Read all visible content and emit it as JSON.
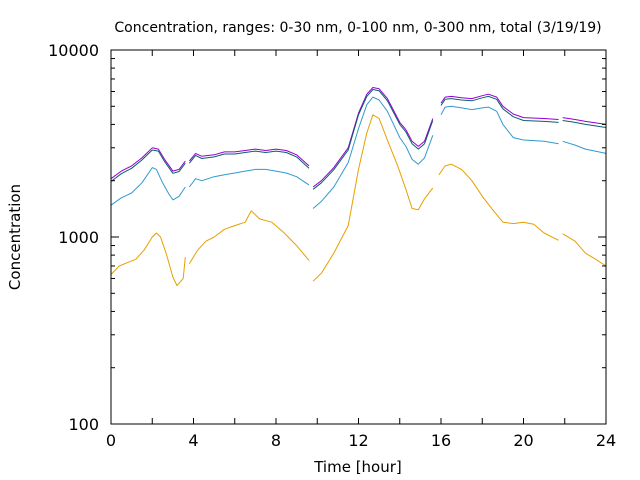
{
  "chart_data": {
    "type": "line",
    "title": "Concentration, ranges: 0-30 nm, 0-100 nm, 0-300 nm, total (3/19/19)",
    "xlabel": "Time [hour]",
    "ylabel": "Concentration",
    "xlim": [
      0,
      24
    ],
    "ylim": [
      100,
      10000
    ],
    "yscale": "log",
    "xticks": [
      "0",
      "4",
      "8",
      "12",
      "16",
      "20",
      "24"
    ],
    "yticks": [
      "100",
      "1000",
      "10000"
    ],
    "grid": false,
    "legend": "none",
    "series": [
      {
        "color": "#9400d3",
        "segments": [
          [
            [
              0,
              2050
            ],
            [
              0.5,
              2250
            ],
            [
              1.0,
              2400
            ],
            [
              1.5,
              2650
            ],
            [
              2.0,
              3000
            ],
            [
              2.3,
              2950
            ],
            [
              2.6,
              2600
            ],
            [
              3.0,
              2250
            ],
            [
              3.3,
              2300
            ],
            [
              3.6,
              2550
            ]
          ],
          [
            [
              3.8,
              2550
            ],
            [
              4.1,
              2800
            ],
            [
              4.4,
              2700
            ],
            [
              5.0,
              2750
            ],
            [
              5.5,
              2850
            ],
            [
              6.0,
              2850
            ],
            [
              6.5,
              2900
            ],
            [
              7.0,
              2950
            ],
            [
              7.5,
              2900
            ],
            [
              8.0,
              2950
            ],
            [
              8.5,
              2900
            ],
            [
              9.0,
              2750
            ],
            [
              9.6,
              2400
            ]
          ],
          [
            [
              9.8,
              1850
            ],
            [
              10.2,
              2000
            ],
            [
              10.8,
              2350
            ],
            [
              11.5,
              3000
            ],
            [
              12.0,
              4600
            ],
            [
              12.4,
              5800
            ],
            [
              12.7,
              6300
            ],
            [
              13.0,
              6200
            ],
            [
              13.4,
              5500
            ],
            [
              14.0,
              4100
            ],
            [
              14.3,
              3750
            ],
            [
              14.6,
              3250
            ],
            [
              14.9,
              3050
            ],
            [
              15.2,
              3250
            ],
            [
              15.6,
              4300
            ]
          ],
          [
            [
              16.0,
              5200
            ],
            [
              16.2,
              5600
            ],
            [
              16.5,
              5650
            ],
            [
              17.0,
              5550
            ],
            [
              17.5,
              5500
            ],
            [
              18.0,
              5700
            ],
            [
              18.3,
              5800
            ],
            [
              18.7,
              5600
            ],
            [
              19.0,
              5000
            ],
            [
              19.5,
              4550
            ],
            [
              20.0,
              4350
            ],
            [
              21.0,
              4300
            ],
            [
              21.7,
              4250
            ]
          ],
          [
            [
              21.9,
              4350
            ],
            [
              22.5,
              4250
            ],
            [
              23.0,
              4150
            ],
            [
              24.0,
              4000
            ]
          ]
        ]
      },
      {
        "color": "#0a5f6a",
        "segments": [
          [
            [
              0,
              1980
            ],
            [
              0.5,
              2180
            ],
            [
              1.0,
              2330
            ],
            [
              1.5,
              2580
            ],
            [
              2.0,
              2920
            ],
            [
              2.3,
              2880
            ],
            [
              2.6,
              2530
            ],
            [
              3.0,
              2190
            ],
            [
              3.3,
              2240
            ],
            [
              3.6,
              2480
            ]
          ],
          [
            [
              3.8,
              2480
            ],
            [
              4.1,
              2730
            ],
            [
              4.4,
              2630
            ],
            [
              5.0,
              2680
            ],
            [
              5.5,
              2780
            ],
            [
              6.0,
              2780
            ],
            [
              6.5,
              2830
            ],
            [
              7.0,
              2880
            ],
            [
              7.5,
              2830
            ],
            [
              8.0,
              2880
            ],
            [
              8.5,
              2830
            ],
            [
              9.0,
              2680
            ],
            [
              9.6,
              2330
            ]
          ],
          [
            [
              9.8,
              1800
            ],
            [
              10.2,
              1950
            ],
            [
              10.8,
              2290
            ],
            [
              11.5,
              2920
            ],
            [
              12.0,
              4500
            ],
            [
              12.4,
              5650
            ],
            [
              12.7,
              6150
            ],
            [
              13.0,
              6050
            ],
            [
              13.4,
              5350
            ],
            [
              14.0,
              4000
            ],
            [
              14.3,
              3650
            ],
            [
              14.6,
              3150
            ],
            [
              14.9,
              2950
            ],
            [
              15.2,
              3150
            ],
            [
              15.6,
              4200
            ]
          ],
          [
            [
              16.0,
              5050
            ],
            [
              16.2,
              5450
            ],
            [
              16.5,
              5500
            ],
            [
              17.0,
              5400
            ],
            [
              17.5,
              5350
            ],
            [
              18.0,
              5550
            ],
            [
              18.3,
              5650
            ],
            [
              18.7,
              5450
            ],
            [
              19.0,
              4850
            ],
            [
              19.5,
              4400
            ],
            [
              20.0,
              4200
            ],
            [
              21.0,
              4150
            ],
            [
              21.7,
              4100
            ]
          ],
          [
            [
              21.9,
              4200
            ],
            [
              22.5,
              4100
            ],
            [
              23.0,
              4000
            ],
            [
              24.0,
              3850
            ]
          ]
        ]
      },
      {
        "color": "#3399cc",
        "segments": [
          [
            [
              0,
              1480
            ],
            [
              0.5,
              1620
            ],
            [
              1.0,
              1720
            ],
            [
              1.5,
              1950
            ],
            [
              2.0,
              2350
            ],
            [
              2.2,
              2300
            ],
            [
              2.5,
              1950
            ],
            [
              2.8,
              1700
            ],
            [
              3.0,
              1580
            ],
            [
              3.3,
              1650
            ],
            [
              3.6,
              1850
            ]
          ],
          [
            [
              3.8,
              1850
            ],
            [
              4.1,
              2050
            ],
            [
              4.4,
              2000
            ],
            [
              5.0,
              2100
            ],
            [
              5.5,
              2150
            ],
            [
              6.0,
              2200
            ],
            [
              6.5,
              2250
            ],
            [
              7.0,
              2300
            ],
            [
              7.5,
              2300
            ],
            [
              8.0,
              2250
            ],
            [
              8.5,
              2200
            ],
            [
              9.0,
              2100
            ],
            [
              9.6,
              1900
            ]
          ],
          [
            [
              9.8,
              1420
            ],
            [
              10.2,
              1550
            ],
            [
              10.8,
              1850
            ],
            [
              11.5,
              2500
            ],
            [
              12.0,
              3800
            ],
            [
              12.4,
              5100
            ],
            [
              12.7,
              5600
            ],
            [
              13.0,
              5400
            ],
            [
              13.4,
              4700
            ],
            [
              14.0,
              3400
            ],
            [
              14.3,
              3050
            ],
            [
              14.6,
              2600
            ],
            [
              14.9,
              2450
            ],
            [
              15.2,
              2650
            ],
            [
              15.6,
              3500
            ]
          ],
          [
            [
              16.0,
              4500
            ],
            [
              16.2,
              4950
            ],
            [
              16.5,
              5000
            ],
            [
              17.0,
              4900
            ],
            [
              17.5,
              4800
            ],
            [
              18.0,
              4900
            ],
            [
              18.3,
              4950
            ],
            [
              18.7,
              4700
            ],
            [
              19.0,
              4000
            ],
            [
              19.5,
              3400
            ],
            [
              20.0,
              3300
            ],
            [
              21.0,
              3250
            ],
            [
              21.7,
              3150
            ]
          ],
          [
            [
              21.9,
              3250
            ],
            [
              22.5,
              3100
            ],
            [
              23.0,
              2950
            ],
            [
              24.0,
              2800
            ]
          ]
        ]
      },
      {
        "color": "#e6a000",
        "segments": [
          [
            [
              0,
              630
            ],
            [
              0.4,
              700
            ],
            [
              0.8,
              730
            ],
            [
              1.2,
              760
            ],
            [
              1.6,
              850
            ],
            [
              2.0,
              1000
            ],
            [
              2.2,
              1050
            ],
            [
              2.4,
              1000
            ],
            [
              2.7,
              800
            ],
            [
              3.0,
              610
            ],
            [
              3.2,
              550
            ],
            [
              3.5,
              600
            ],
            [
              3.6,
              780
            ]
          ],
          [
            [
              3.8,
              720
            ],
            [
              4.2,
              850
            ],
            [
              4.6,
              950
            ],
            [
              5.0,
              1000
            ],
            [
              5.5,
              1100
            ],
            [
              6.0,
              1150
            ],
            [
              6.5,
              1200
            ],
            [
              6.8,
              1380
            ],
            [
              7.2,
              1250
            ],
            [
              7.8,
              1200
            ],
            [
              8.4,
              1050
            ],
            [
              9.0,
              900
            ],
            [
              9.6,
              750
            ]
          ],
          [
            [
              9.8,
              580
            ],
            [
              10.2,
              640
            ],
            [
              10.8,
              820
            ],
            [
              11.5,
              1150
            ],
            [
              12.0,
              2300
            ],
            [
              12.4,
              3600
            ],
            [
              12.7,
              4500
            ],
            [
              13.0,
              4300
            ],
            [
              13.4,
              3300
            ],
            [
              13.9,
              2400
            ],
            [
              14.3,
              1800
            ],
            [
              14.6,
              1420
            ],
            [
              14.9,
              1400
            ],
            [
              15.2,
              1600
            ],
            [
              15.6,
              1830
            ]
          ],
          [
            [
              15.9,
              2150
            ],
            [
              16.2,
              2400
            ],
            [
              16.5,
              2450
            ],
            [
              17.0,
              2300
            ],
            [
              17.5,
              2000
            ],
            [
              18.0,
              1650
            ],
            [
              18.5,
              1400
            ],
            [
              19.0,
              1200
            ],
            [
              19.5,
              1180
            ],
            [
              20.0,
              1200
            ],
            [
              20.5,
              1170
            ],
            [
              21.0,
              1050
            ],
            [
              21.7,
              960
            ]
          ],
          [
            [
              21.9,
              1040
            ],
            [
              22.5,
              950
            ],
            [
              23.0,
              820
            ],
            [
              23.5,
              760
            ],
            [
              24.0,
              700
            ]
          ]
        ]
      }
    ]
  }
}
